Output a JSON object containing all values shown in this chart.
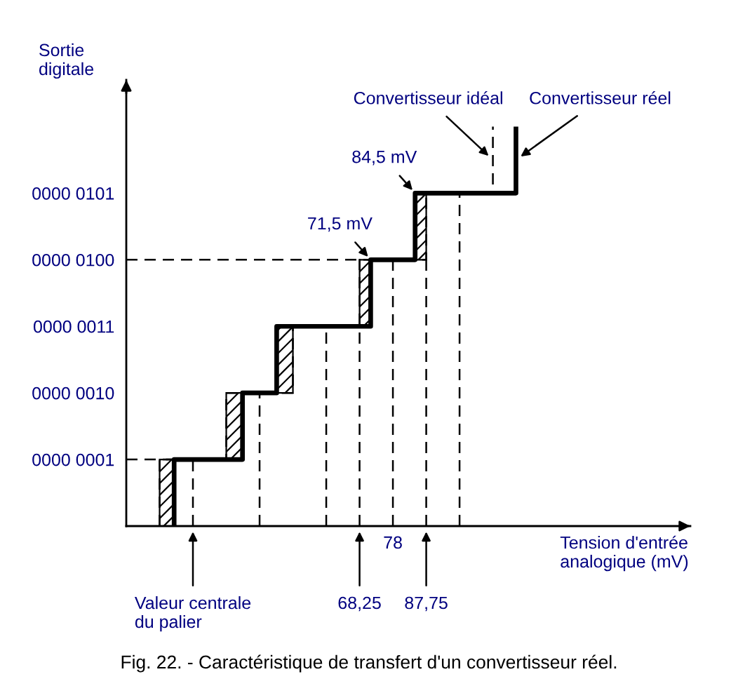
{
  "chart_data": {
    "type": "step",
    "orientation": "horizontal",
    "categories": [
      null,
      "0000 0101",
      "0000 0100",
      "0000 0011",
      "0000 0010",
      "0000 0001",
      null
    ],
    "xlabel": "Tension d'entrée\nanalogique (mV)",
    "ylabel": "Sortie\ndigitale",
    "annotations": [
      {
        "text": "71,5 mV",
        "x": 71.5,
        "y": "0000 0100"
      },
      {
        "text": "84,5 mV",
        "x": 84.5,
        "y": "0000 0101"
      },
      "Fig. 22. - Caractéristique de transfert d'un convertisseur réel."
    ],
    "xlim": [
      0,
      165
    ],
    "xticks": [
      {
        "value": 19.5,
        "label": "Valeur centrale\ndu palier"
      },
      {
        "value": 68.25,
        "label": "68,25"
      },
      {
        "value": 87.75,
        "label": "87,75"
      }
    ],
    "series": [
      {
        "name": "Convertisseur idéal",
        "color": "#000000",
        "line_style": "dashed",
        "values": [
          107.25,
          87.75,
          68.25,
          48.75,
          29.25,
          9.75,
          9.75
        ]
      },
      {
        "name": "Convertisseur réel",
        "color": "#000000",
        "line_style": "solid",
        "values": [
          114,
          84.5,
          71.5,
          44,
          34,
          14,
          14
        ]
      }
    ],
    "ref_lines": [
      {
        "axis": "x",
        "value": 19.5,
        "color": "#000000",
        "line_style": "dashed"
      },
      {
        "axis": "x",
        "value": 39,
        "color": "#000000",
        "line_style": "dashed"
      },
      {
        "axis": "x",
        "value": 58.5,
        "color": "#000000",
        "line_style": "dashed"
      },
      {
        "axis": "x",
        "value": 68.25,
        "color": "#000000",
        "line_style": "dashed"
      },
      {
        "axis": "x",
        "value": 78,
        "label": "78",
        "color": "#000000",
        "line_style": "dashed"
      },
      {
        "axis": "x",
        "value": 87.75,
        "color": "#000000",
        "line_style": "dashed"
      },
      {
        "axis": "x",
        "value": 97.5,
        "color": "#000000",
        "line_style": "dashed"
      },
      {
        "axis": "y",
        "value": "0000 0001",
        "color": "#000000",
        "line_style": "dashed"
      },
      {
        "axis": "y",
        "value": "0000 0100",
        "color": "#000000",
        "line_style": "dashed"
      }
    ],
    "grid": false,
    "legend": false,
    "marker": "none"
  }
}
